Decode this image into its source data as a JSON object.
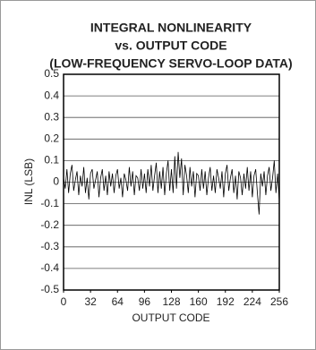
{
  "chart_data": {
    "type": "line",
    "title": [
      "INTEGRAL NONLINEARITY",
      "vs. OUTPUT CODE",
      "(LOW-FREQUENCY SERVO-LOOP DATA)"
    ],
    "xlabel": "OUTPUT CODE",
    "ylabel": "INL (LSB)",
    "xlim": [
      0,
      256
    ],
    "xticks": [
      0,
      32,
      64,
      96,
      128,
      160,
      192,
      224,
      256
    ],
    "ylim": [
      -0.5,
      0.5
    ],
    "yticks": [
      0.5,
      0.4,
      0.3,
      0.2,
      0.1,
      0,
      -0.1,
      -0.2,
      -0.3,
      -0.4,
      -0.5
    ],
    "grid": true,
    "x": [
      0,
      2,
      4,
      6,
      8,
      10,
      12,
      14,
      16,
      18,
      20,
      22,
      24,
      26,
      28,
      30,
      32,
      34,
      36,
      38,
      40,
      42,
      44,
      46,
      48,
      50,
      52,
      54,
      56,
      58,
      60,
      62,
      64,
      66,
      68,
      70,
      72,
      74,
      76,
      78,
      80,
      82,
      84,
      86,
      88,
      90,
      92,
      94,
      96,
      98,
      100,
      102,
      104,
      106,
      108,
      110,
      112,
      114,
      116,
      118,
      120,
      122,
      124,
      126,
      128,
      130,
      132,
      134,
      136,
      138,
      140,
      142,
      144,
      146,
      148,
      150,
      152,
      154,
      156,
      158,
      160,
      162,
      164,
      166,
      168,
      170,
      172,
      174,
      176,
      178,
      180,
      182,
      184,
      186,
      188,
      190,
      192,
      194,
      196,
      198,
      200,
      202,
      204,
      206,
      208,
      210,
      212,
      214,
      216,
      218,
      220,
      222,
      224,
      226,
      228,
      230,
      232,
      234,
      236,
      238,
      240,
      242,
      244,
      246,
      248,
      250,
      252,
      254,
      256
    ],
    "series": [
      {
        "name": "INL",
        "color": "#000000",
        "values": [
          0.02,
          -0.03,
          0.06,
          -0.05,
          0.04,
          0.08,
          -0.04,
          0.01,
          0.05,
          -0.06,
          0.03,
          -0.02,
          0.07,
          -0.05,
          0.02,
          -0.08,
          0.04,
          0.06,
          -0.03,
          0.01,
          0.05,
          -0.07,
          0.02,
          0.06,
          -0.04,
          0.03,
          -0.06,
          0.05,
          -0.02,
          0.04,
          -0.05,
          0.03,
          0.06,
          -0.03,
          0.02,
          -0.07,
          0.04,
          0.01,
          -0.04,
          0.07,
          -0.02,
          0.05,
          -0.06,
          0.03,
          0.02,
          -0.04,
          0.06,
          -0.03,
          0.04,
          -0.05,
          0.06,
          -0.02,
          0.08,
          -0.04,
          0.03,
          0.09,
          -0.05,
          0.05,
          -0.03,
          0.07,
          -0.06,
          0.04,
          0.1,
          -0.04,
          0.06,
          -0.05,
          0.12,
          -0.03,
          0.14,
          0.02,
          0.11,
          -0.06,
          0.08,
          0.03,
          -0.05,
          0.07,
          -0.02,
          0.05,
          -0.07,
          0.04,
          0.03,
          -0.04,
          0.06,
          -0.03,
          0.05,
          -0.06,
          0.02,
          0.07,
          -0.04,
          0.03,
          -0.05,
          0.06,
          0.02,
          -0.03,
          0.05,
          -0.07,
          0.04,
          0.08,
          -0.04,
          0.02,
          0.06,
          -0.05,
          0.03,
          -0.08,
          0.05,
          0.02,
          -0.06,
          0.04,
          -0.03,
          0.07,
          -0.04,
          0.05,
          -0.07,
          0.03,
          0.06,
          -0.05,
          -0.15,
          0.04,
          -0.02,
          0.05,
          -0.06,
          0.03,
          0.07,
          -0.04,
          0.02,
          0.1,
          -0.05,
          0.04,
          -0.09
        ]
      }
    ]
  }
}
